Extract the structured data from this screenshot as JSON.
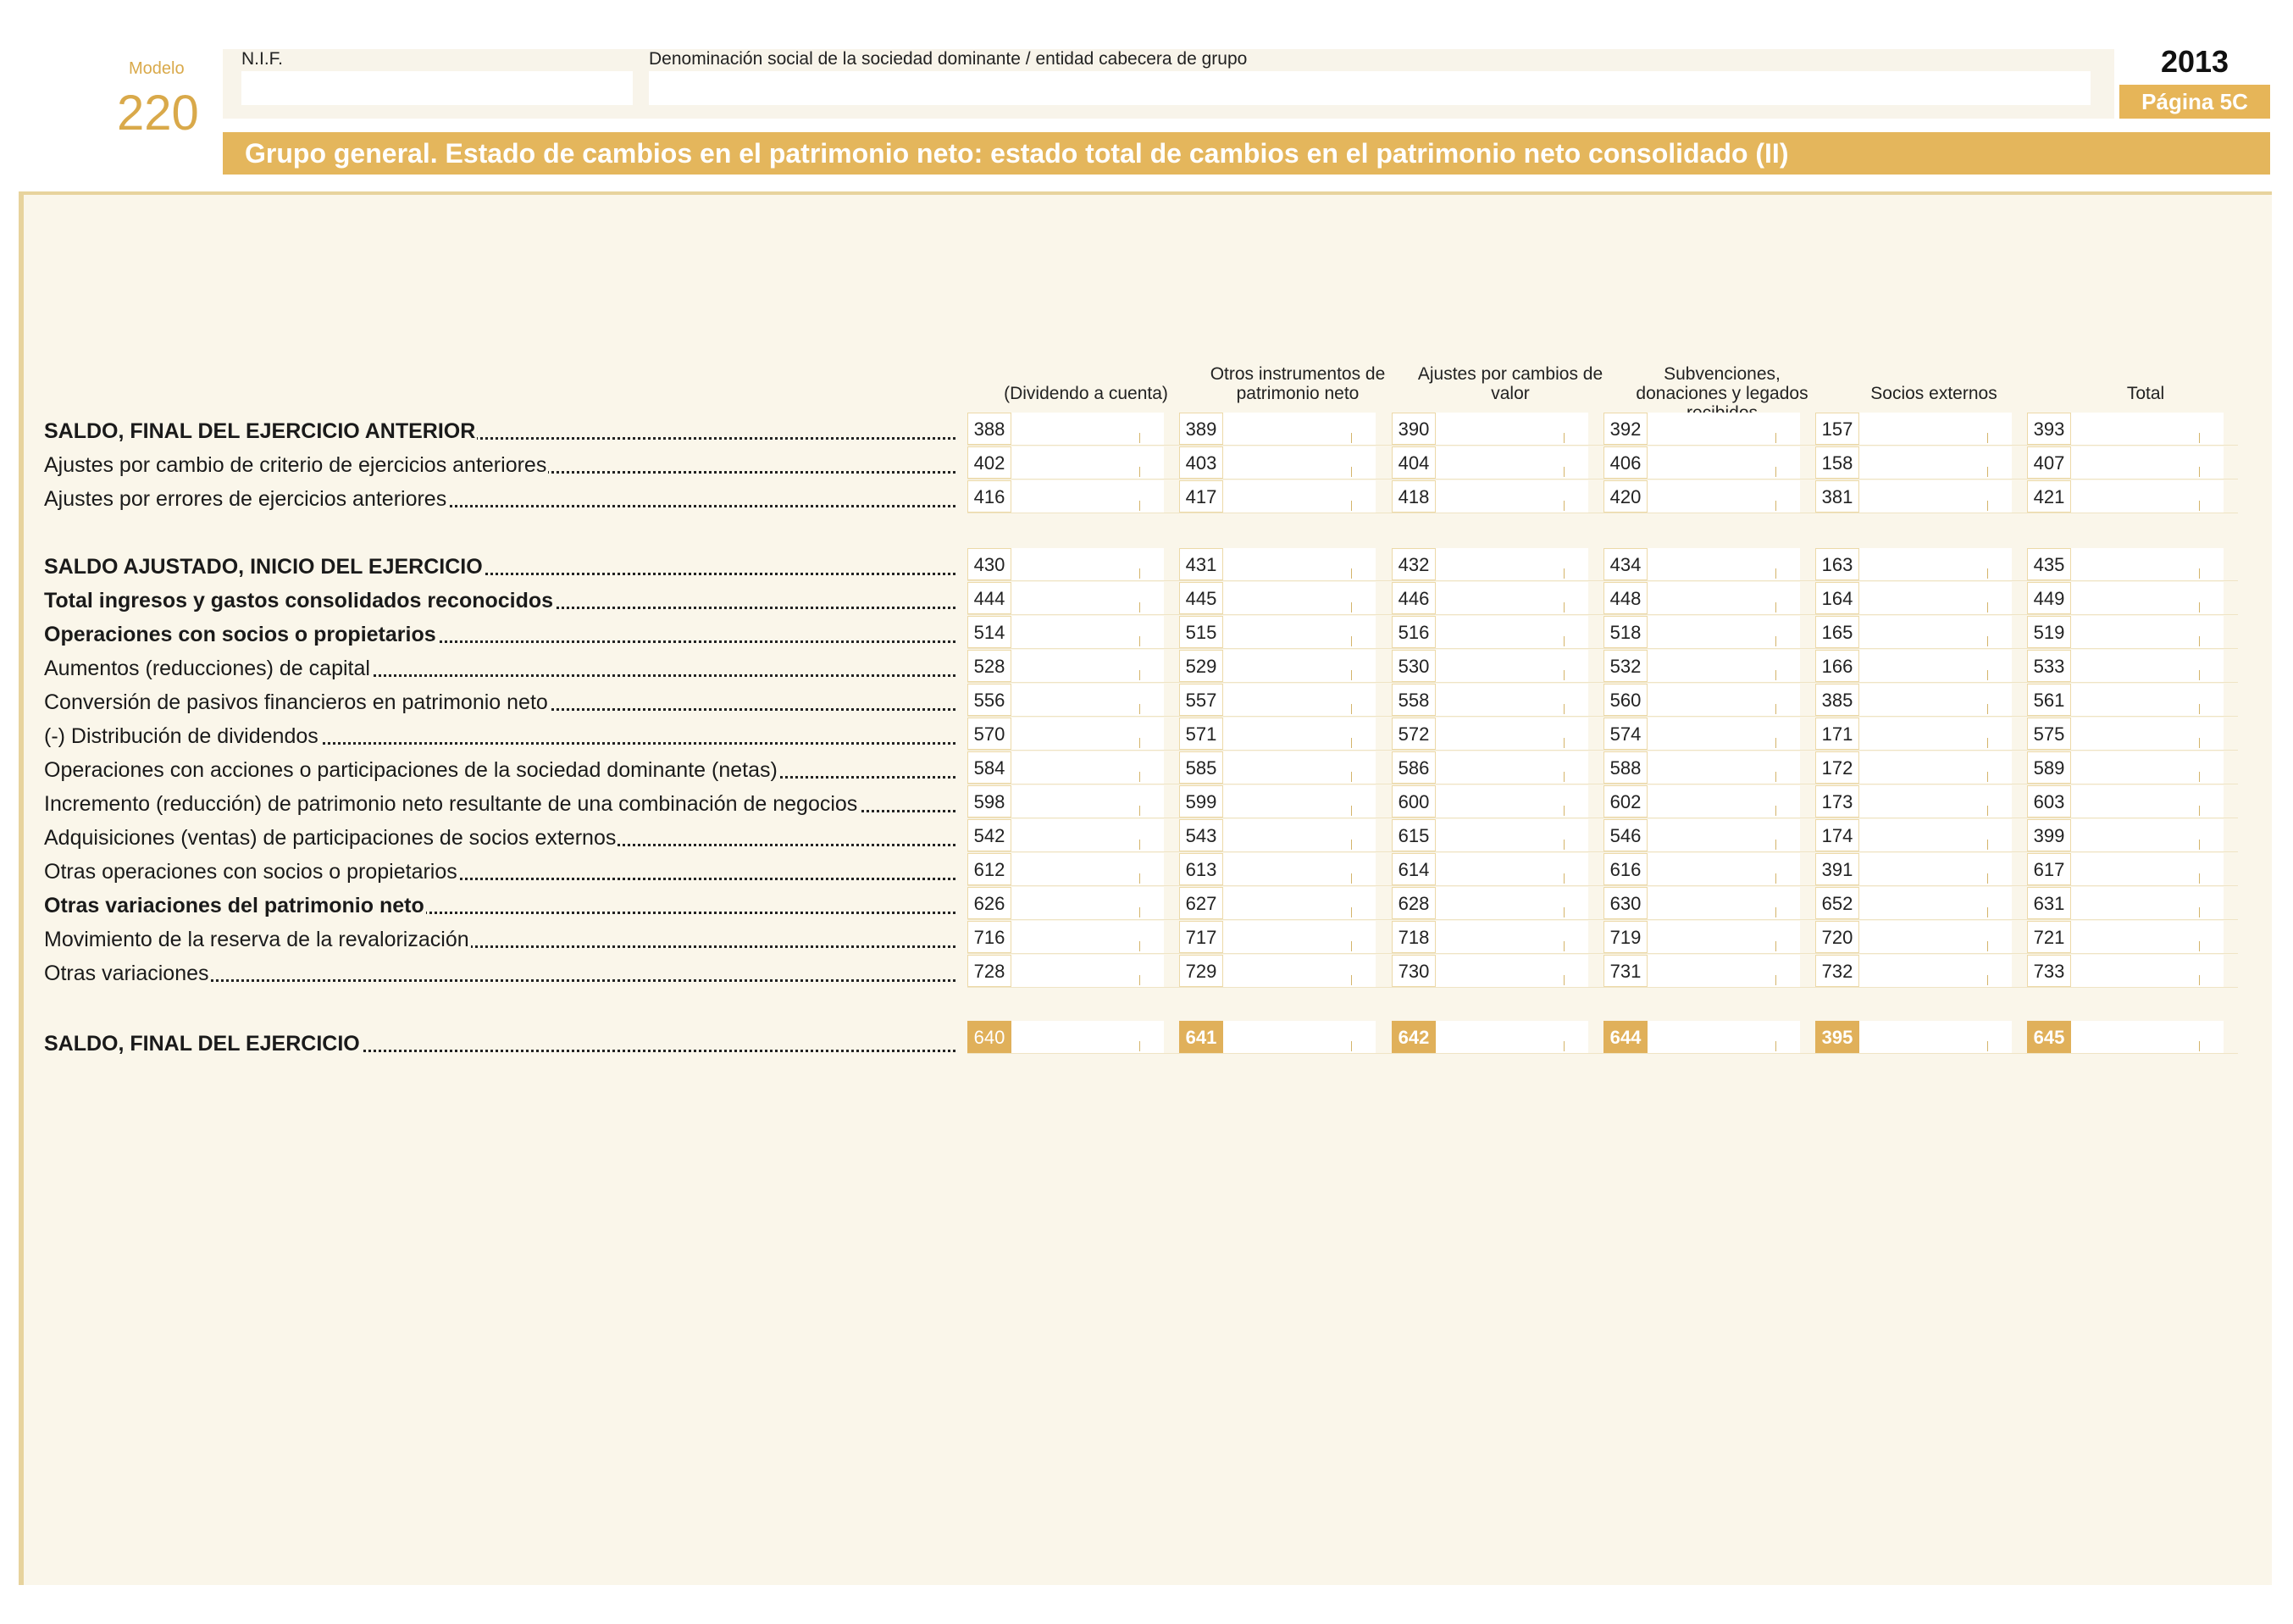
{
  "header": {
    "modelo_label": "Modelo",
    "modelo_number": "220",
    "nif_label": "N.I.F.",
    "denominacion_label": "Denominación social de la sociedad dominante / entidad cabecera de grupo",
    "year": "2013",
    "pagina": "Página 5C",
    "title": "Grupo general. Estado de cambios en el patrimonio neto: estado total de cambios en el patrimonio neto consolidado (II)"
  },
  "columns": [
    "(Dividendo a cuenta)",
    "Otros instrumentos de patrimonio neto",
    "Ajustes por cambios de valor",
    "Subvenciones, donaciones y legados recibidos",
    "Socios externos",
    "Total"
  ],
  "rows": [
    {
      "label": "SALDO, FINAL DEL EJERCICIO ANTERIOR",
      "bold": true,
      "codes": [
        "388",
        "389",
        "390",
        "392",
        "157",
        "393"
      ]
    },
    {
      "label": "Ajustes por cambio de criterio de ejercicios anteriores",
      "bold": false,
      "codes": [
        "402",
        "403",
        "404",
        "406",
        "158",
        "407"
      ]
    },
    {
      "label": "Ajustes por errores de ejercicios anteriores",
      "bold": false,
      "codes": [
        "416",
        "417",
        "418",
        "420",
        "381",
        "421"
      ]
    },
    {
      "label": "SALDO AJUSTADO, INICIO DEL EJERCICIO",
      "bold": true,
      "codes": [
        "430",
        "431",
        "432",
        "434",
        "163",
        "435"
      ]
    },
    {
      "label": "Total ingresos y gastos consolidados reconocidos",
      "bold": true,
      "codes": [
        "444",
        "445",
        "446",
        "448",
        "164",
        "449"
      ]
    },
    {
      "label": "Operaciones con socios o propietarios",
      "bold": true,
      "codes": [
        "514",
        "515",
        "516",
        "518",
        "165",
        "519"
      ]
    },
    {
      "label": "Aumentos (reducciones) de capital",
      "bold": false,
      "codes": [
        "528",
        "529",
        "530",
        "532",
        "166",
        "533"
      ]
    },
    {
      "label": "Conversión de pasivos financieros en patrimonio neto",
      "bold": false,
      "codes": [
        "556",
        "557",
        "558",
        "560",
        "385",
        "561"
      ]
    },
    {
      "label": "(-) Distribución de dividendos",
      "bold": false,
      "codes": [
        "570",
        "571",
        "572",
        "574",
        "171",
        "575"
      ]
    },
    {
      "label": "Operaciones con acciones o participaciones de la sociedad dominante (netas)",
      "bold": false,
      "codes": [
        "584",
        "585",
        "586",
        "588",
        "172",
        "589"
      ]
    },
    {
      "label": "Incremento (reducción) de patrimonio neto resultante de una combinación de negocios",
      "bold": false,
      "codes": [
        "598",
        "599",
        "600",
        "602",
        "173",
        "603"
      ]
    },
    {
      "label": "Adquisiciones (ventas) de participaciones de socios externos",
      "bold": false,
      "codes": [
        "542",
        "543",
        "615",
        "546",
        "174",
        "399"
      ]
    },
    {
      "label": "Otras operaciones con socios o propietarios",
      "bold": false,
      "codes": [
        "612",
        "613",
        "614",
        "616",
        "391",
        "617"
      ]
    },
    {
      "label": "Otras variaciones del patrimonio neto",
      "bold": true,
      "codes": [
        "626",
        "627",
        "628",
        "630",
        "652",
        "631"
      ]
    },
    {
      "label": "Movimiento de la reserva de la revalorización",
      "bold": false,
      "codes": [
        "716",
        "717",
        "718",
        "719",
        "720",
        "721"
      ]
    },
    {
      "label": "Otras variaciones",
      "bold": false,
      "codes": [
        "728",
        "729",
        "730",
        "731",
        "732",
        "733"
      ]
    },
    {
      "label": "SALDO, FINAL DEL EJERCICIO",
      "bold": true,
      "final": true,
      "codes": [
        "640",
        "641",
        "642",
        "644",
        "395",
        "645"
      ]
    }
  ],
  "colors": {
    "accent": "#e4b65c",
    "panel": "#faf6ea"
  }
}
